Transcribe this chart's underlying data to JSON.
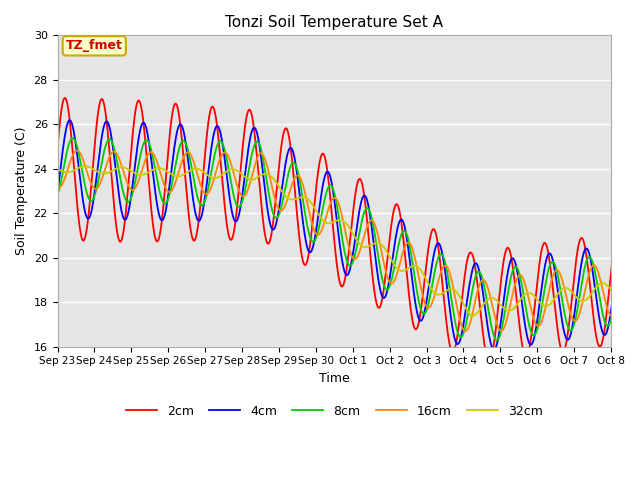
{
  "title": "Tonzi Soil Temperature Set A",
  "xlabel": "Time",
  "ylabel": "Soil Temperature (C)",
  "ylim": [
    16,
    30
  ],
  "background_color": "#ffffff",
  "plot_bg_color": "#e5e5e5",
  "annotation_text": "TZ_fmet",
  "annotation_bg": "#ffffcc",
  "annotation_border": "#ccaa00",
  "annotation_text_color": "#cc0000",
  "tick_labels": [
    "Sep 23",
    "Sep 24",
    "Sep 25",
    "Sep 26",
    "Sep 27",
    "Sep 28",
    "Sep 29",
    "Sep 30",
    "Oct 1",
    "Oct 2",
    "Oct 3",
    "Oct 4",
    "Oct 5",
    "Oct 6",
    "Oct 7",
    "Oct 8"
  ],
  "legend_labels": [
    "2cm",
    "4cm",
    "8cm",
    "16cm",
    "32cm"
  ],
  "line_colors": [
    "#ff0000",
    "#0000ff",
    "#00cc00",
    "#ff8800",
    "#cccc00"
  ]
}
